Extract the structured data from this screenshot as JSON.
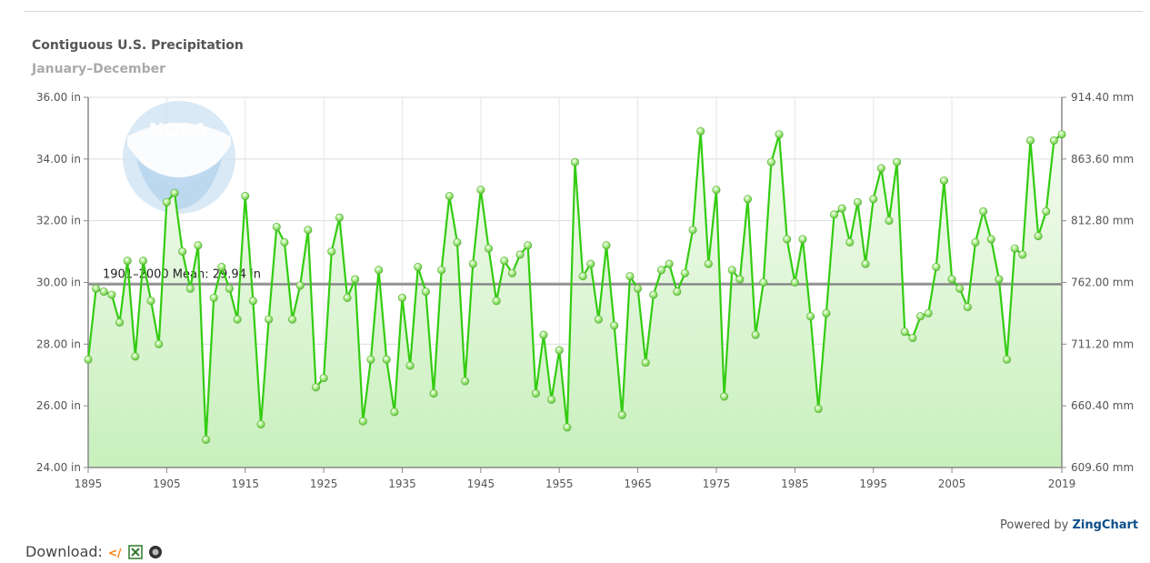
{
  "header": {
    "title": "Contiguous U.S. Precipitation",
    "subtitle": "January–December"
  },
  "footer": {
    "powered_prefix": "Powered by ",
    "powered_brand": "ZingChart",
    "download_label": "Download:"
  },
  "watermark": {
    "text": "NOAA",
    "icon": "noaa-logo"
  },
  "colors": {
    "line": "#33cc11",
    "marker": "#88dd55",
    "area_top": "#f4fbf0",
    "area_bottom": "#c8f0bc",
    "mean_line": "#888888",
    "grid": "#dddddd"
  },
  "chart_data": {
    "type": "line",
    "title": "Contiguous U.S. Precipitation",
    "subtitle": "January–December",
    "x_range": [
      1895,
      2019
    ],
    "x_ticks": [
      1895,
      1905,
      1915,
      1925,
      1935,
      1945,
      1955,
      1965,
      1975,
      1985,
      1995,
      2005,
      2019
    ],
    "y_range": [
      24,
      36
    ],
    "y_ticks_left": [
      "24.00 in",
      "26.00 in",
      "28.00 in",
      "30.00 in",
      "32.00 in",
      "34.00 in",
      "36.00 in"
    ],
    "y_ticks_right": [
      "609.60 mm",
      "660.40 mm",
      "711.20 mm",
      "762.00 mm",
      "812.80 mm",
      "863.60 mm",
      "914.40 mm"
    ],
    "grid": true,
    "mean": {
      "label": "1901–2000 Mean: 29.94 in",
      "value": 29.94
    },
    "x": [
      1895,
      1896,
      1897,
      1898,
      1899,
      1900,
      1901,
      1902,
      1903,
      1904,
      1905,
      1906,
      1907,
      1908,
      1909,
      1910,
      1911,
      1912,
      1913,
      1914,
      1915,
      1916,
      1917,
      1918,
      1919,
      1920,
      1921,
      1922,
      1923,
      1924,
      1925,
      1926,
      1927,
      1928,
      1929,
      1930,
      1931,
      1932,
      1933,
      1934,
      1935,
      1936,
      1937,
      1938,
      1939,
      1940,
      1941,
      1942,
      1943,
      1944,
      1945,
      1946,
      1947,
      1948,
      1949,
      1950,
      1951,
      1952,
      1953,
      1954,
      1955,
      1956,
      1957,
      1958,
      1959,
      1960,
      1961,
      1962,
      1963,
      1964,
      1965,
      1966,
      1967,
      1968,
      1969,
      1970,
      1971,
      1972,
      1973,
      1974,
      1975,
      1976,
      1977,
      1978,
      1979,
      1980,
      1981,
      1982,
      1983,
      1984,
      1985,
      1986,
      1987,
      1988,
      1989,
      1990,
      1991,
      1992,
      1993,
      1994,
      1995,
      1996,
      1997,
      1998,
      1999,
      2000,
      2001,
      2002,
      2003,
      2004,
      2005,
      2006,
      2007,
      2008,
      2009,
      2010,
      2011,
      2012,
      2013,
      2014,
      2015,
      2016,
      2017,
      2018,
      2019
    ],
    "values": [
      27.5,
      29.8,
      29.7,
      29.6,
      28.7,
      30.7,
      27.6,
      30.7,
      29.4,
      28.0,
      32.6,
      32.9,
      31.0,
      29.8,
      31.2,
      24.9,
      29.5,
      30.5,
      29.8,
      28.8,
      32.8,
      29.4,
      25.4,
      28.8,
      31.8,
      31.3,
      28.8,
      29.9,
      31.7,
      26.6,
      26.9,
      31.0,
      32.1,
      29.5,
      30.1,
      25.5,
      27.5,
      30.4,
      27.5,
      25.8,
      29.5,
      27.3,
      30.5,
      29.7,
      26.4,
      30.4,
      32.8,
      31.3,
      26.8,
      30.6,
      33.0,
      31.1,
      29.4,
      30.7,
      30.3,
      30.9,
      31.2,
      26.4,
      28.3,
      26.2,
      27.8,
      25.3,
      33.9,
      30.2,
      30.6,
      28.8,
      31.2,
      28.6,
      25.7,
      30.2,
      29.8,
      27.4,
      29.6,
      30.4,
      30.6,
      29.7,
      30.3,
      31.7,
      34.9,
      30.6,
      33.0,
      26.3,
      30.4,
      30.1,
      32.7,
      28.3,
      30.0,
      33.9,
      34.8,
      31.4,
      30.0,
      31.4,
      28.9,
      25.9,
      29.0,
      32.2,
      32.4,
      31.3,
      32.6,
      30.6,
      32.7,
      33.7,
      32.0,
      33.9,
      28.4,
      28.2,
      28.9,
      29.0,
      30.5,
      33.3,
      30.1,
      29.8,
      29.2,
      31.3,
      32.3,
      31.4,
      30.1,
      27.5,
      31.1,
      30.9,
      34.6,
      31.5,
      32.3,
      34.6,
      34.8
    ]
  }
}
